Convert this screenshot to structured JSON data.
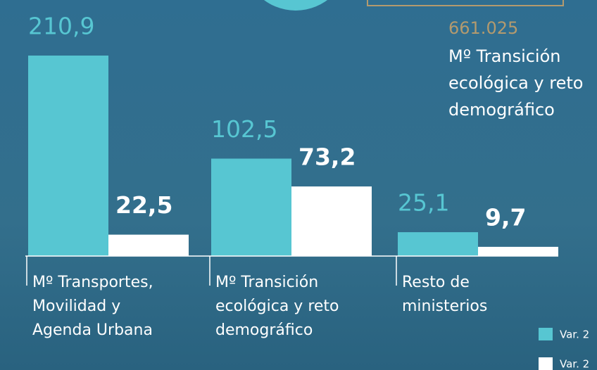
{
  "chart_data": {
    "type": "bar",
    "categories": [
      "Mº Transportes,\nMovilidad y\nAgenda Urbana",
      "Mº Transición\necológica y reto\ndemográfico",
      "Resto de\nministerios"
    ],
    "series": [
      {
        "name": "Var. 2",
        "color": "#57c6d2",
        "values": [
          210.9,
          102.5,
          25.1
        ],
        "value_labels": [
          "210,9",
          "102,5",
          "25,1"
        ]
      },
      {
        "name": "Var. 2",
        "color": "#ffffff",
        "values": [
          22.5,
          73.2,
          9.7
        ],
        "value_labels": [
          "22,5",
          "73,2",
          "9,7"
        ]
      }
    ],
    "annotation": {
      "value": "661.025",
      "label": "Mº Transición\necológica y reto\ndemográfico"
    }
  }
}
